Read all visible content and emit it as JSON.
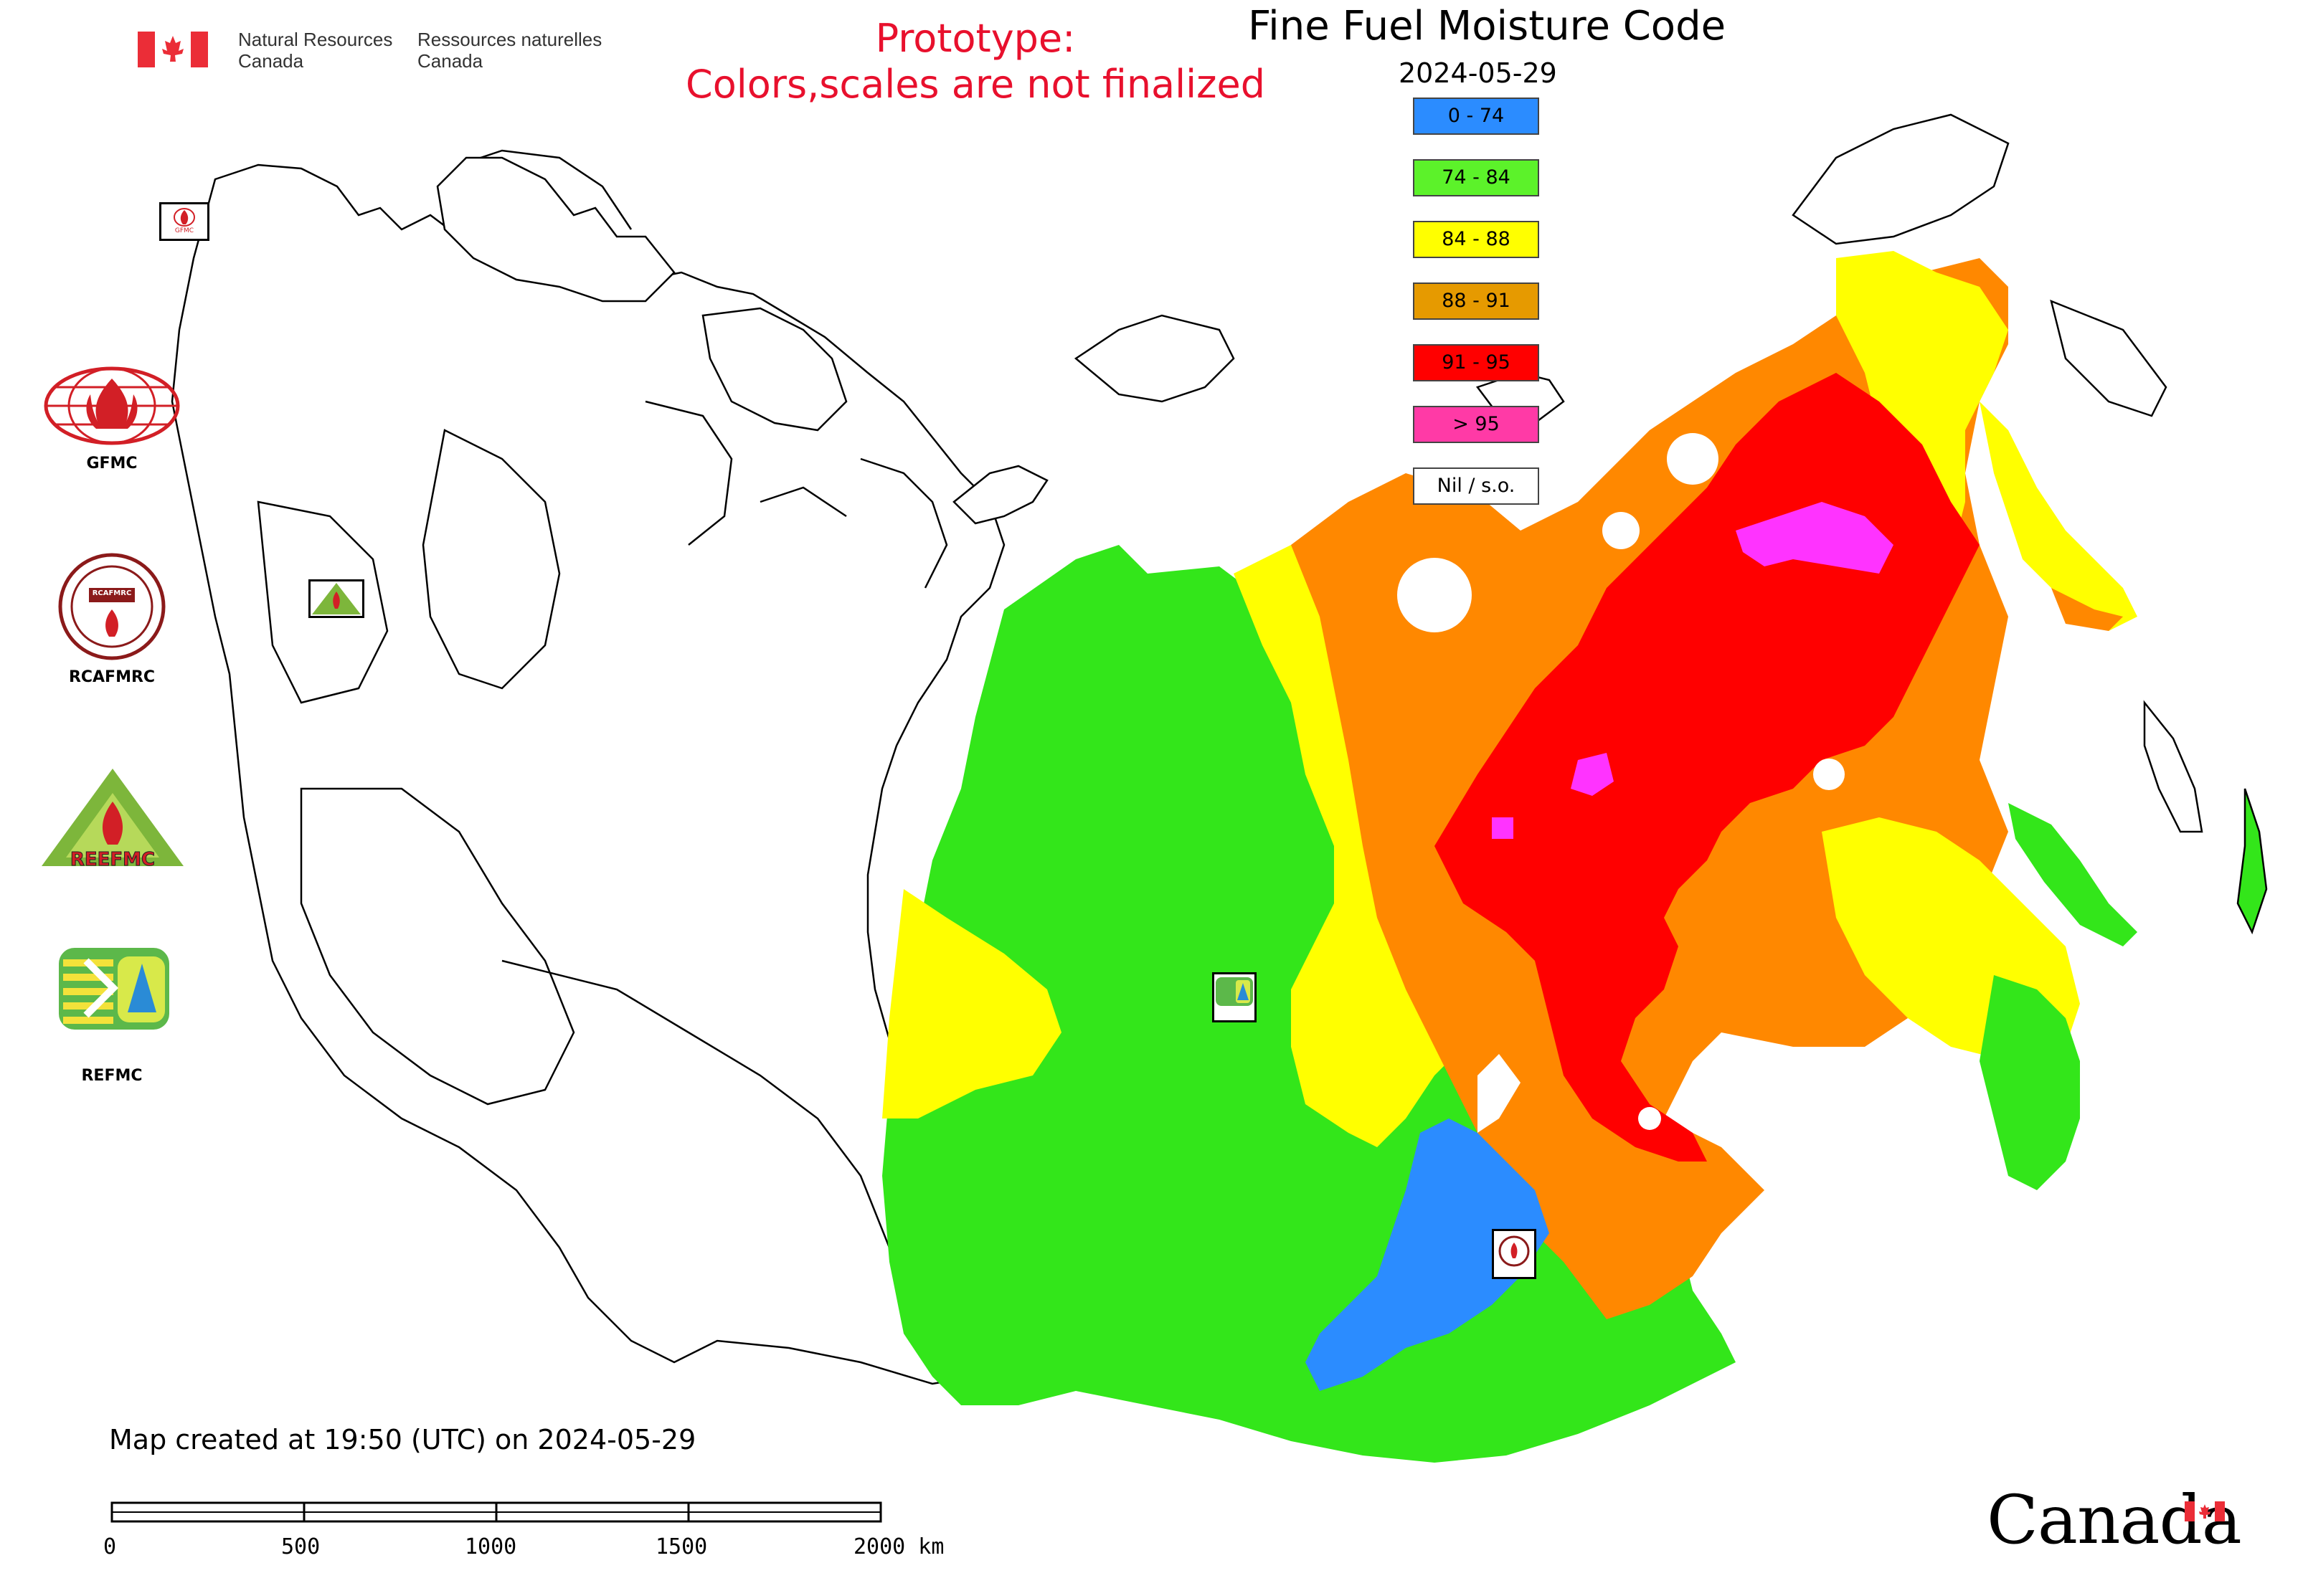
{
  "header": {
    "dept_en_line1": "Natural Resources",
    "dept_en_line2": "Canada",
    "dept_fr_line1": "Ressources naturelles",
    "dept_fr_line2": "Canada",
    "prototype_line1": "Prototype:",
    "prototype_line2": "Colors,scales are not finalized",
    "title": "Fine Fuel Moisture Code",
    "date": "2024-05-29"
  },
  "legend": [
    {
      "label": "0 - 74",
      "color": "#2b8cff"
    },
    {
      "label": "74 - 84",
      "color": "#5cf22a"
    },
    {
      "label": "84 - 88",
      "color": "#ffff00"
    },
    {
      "label": "88 - 91",
      "color": "#e69a00"
    },
    {
      "label": "91 - 95",
      "color": "#ff0000"
    },
    {
      "label": "> 95",
      "color": "#ff3aa6"
    },
    {
      "label": "Nil / s.o.",
      "color": "#ffffff"
    }
  ],
  "organizations": [
    {
      "name": "GFMC",
      "icon": "gfmc-logo-icon"
    },
    {
      "name": "RCAFMRC",
      "icon": "rcafmrc-logo-icon"
    },
    {
      "name": "REEFMC",
      "icon": "reefmc-logo-icon"
    },
    {
      "name": "REFMC",
      "icon": "refmc-logo-icon"
    }
  ],
  "logo_text": {
    "reefmc": "REEFMC",
    "rcafmrc": "RCAFMRC",
    "gfmc": "GFMC"
  },
  "footer": {
    "created": "Map created at 19:50 (UTC) on 2024-05-29",
    "scale_ticks": [
      "0",
      "500",
      "1000",
      "1500",
      "2000 km"
    ],
    "wordmark": "Canada"
  },
  "colors": {
    "blue": "#2b8cff",
    "green": "#33e61a",
    "yellow": "#ffff00",
    "orange": "#ff8800",
    "red": "#ff0000",
    "magenta": "#ff33ff",
    "prototype_red": "#e8102d",
    "canada_red": "#eb2d37"
  }
}
